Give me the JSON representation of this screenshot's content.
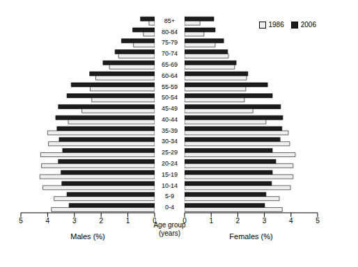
{
  "chart_data": [
    {
      "type": "bar",
      "orientation": "horizontal",
      "x_label": "Males (%)",
      "categories": [
        "85+",
        "80-84",
        "75-79",
        "70-74",
        "65-69",
        "60-64",
        "55-59",
        "50-54",
        "45-49",
        "40-44",
        "35-39",
        "30-34",
        "25-29",
        "20-24",
        "15-19",
        "10-14",
        "5-9",
        "0-4"
      ],
      "xlim": [
        5,
        0
      ],
      "xticks": [
        5,
        4,
        3,
        2,
        1,
        0
      ],
      "tick_labels": "x",
      "series": [
        {
          "name": "1986",
          "color": "#eeeeee",
          "values": [
            0.21,
            0.42,
            0.79,
            1.35,
            1.69,
            2.2,
            2.41,
            2.35,
            2.72,
            3.23,
            4.0,
            3.97,
            4.26,
            4.23,
            4.29,
            4.18,
            3.76,
            3.86
          ]
        },
        {
          "name": "2006",
          "color": "#1c1c1c",
          "values": [
            0.53,
            0.82,
            1.24,
            1.48,
            1.93,
            2.43,
            3.12,
            3.28,
            3.6,
            3.7,
            3.65,
            3.57,
            3.44,
            3.6,
            3.5,
            3.47,
            3.28,
            3.2
          ]
        }
      ]
    },
    {
      "type": "bar",
      "orientation": "horizontal",
      "x_label": "Females (%)",
      "y_label": "Age group (years)",
      "categories": [
        "85+",
        "80-84",
        "75-79",
        "70-74",
        "65-69",
        "60-64",
        "55-59",
        "50-54",
        "45-49",
        "40-44",
        "35-39",
        "30-34",
        "25-29",
        "20-24",
        "15-19",
        "10-14",
        "5-9",
        "0-4"
      ],
      "xlim": [
        0,
        5
      ],
      "xticks": [
        0,
        1,
        2,
        3,
        4,
        5
      ],
      "legend": "upper right",
      "series": [
        {
          "name": "1986",
          "color": "#eeeeee",
          "values": [
            0.58,
            0.73,
            1.15,
            1.65,
            1.88,
            2.33,
            2.3,
            2.25,
            2.57,
            3.06,
            3.9,
            3.95,
            4.16,
            4.08,
            4.08,
            3.98,
            3.56,
            3.67
          ]
        },
        {
          "name": "2006",
          "color": "#1c1c1c",
          "values": [
            1.1,
            1.15,
            1.47,
            1.62,
            1.94,
            2.38,
            3.12,
            3.3,
            3.61,
            3.69,
            3.66,
            3.59,
            3.3,
            3.43,
            3.3,
            3.27,
            3.06,
            3.01
          ]
        }
      ]
    }
  ]
}
